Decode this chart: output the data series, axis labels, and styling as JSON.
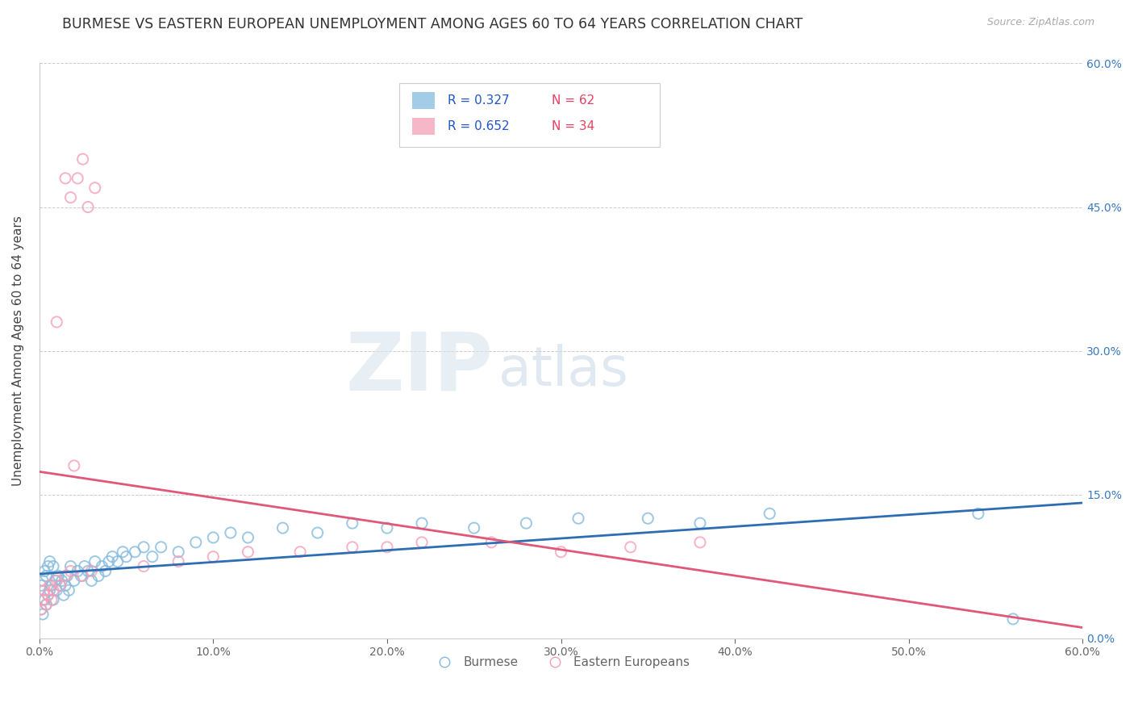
{
  "title": "BURMESE VS EASTERN EUROPEAN UNEMPLOYMENT AMONG AGES 60 TO 64 YEARS CORRELATION CHART",
  "source": "Source: ZipAtlas.com",
  "ylabel": "Unemployment Among Ages 60 to 64 years",
  "x_tick_labels": [
    "0.0%",
    "10.0%",
    "20.0%",
    "30.0%",
    "40.0%",
    "50.0%",
    "60.0%"
  ],
  "y_tick_labels": [
    "0.0%",
    "15.0%",
    "30.0%",
    "45.0%",
    "60.0%"
  ],
  "xlim": [
    0.0,
    0.6
  ],
  "ylim": [
    0.0,
    0.6
  ],
  "legend_labels": [
    "Burmese",
    "Eastern Europeans"
  ],
  "blue_R": "R = 0.327",
  "blue_N": "N = 62",
  "pink_R": "R = 0.652",
  "pink_N": "N = 34",
  "blue_color": "#85bbde",
  "pink_color": "#f4a0b8",
  "blue_line_color": "#2e6db4",
  "pink_line_color": "#e05878",
  "watermark_zip": "ZIP",
  "watermark_atlas": "atlas",
  "title_fontsize": 12.5,
  "axis_label_fontsize": 11,
  "tick_fontsize": 10,
  "blue_points_x": [
    0.001,
    0.001,
    0.002,
    0.002,
    0.003,
    0.003,
    0.004,
    0.004,
    0.005,
    0.005,
    0.006,
    0.006,
    0.007,
    0.008,
    0.008,
    0.009,
    0.01,
    0.011,
    0.012,
    0.013,
    0.014,
    0.015,
    0.016,
    0.017,
    0.018,
    0.02,
    0.022,
    0.024,
    0.026,
    0.028,
    0.03,
    0.032,
    0.034,
    0.036,
    0.038,
    0.04,
    0.042,
    0.045,
    0.048,
    0.05,
    0.055,
    0.06,
    0.065,
    0.07,
    0.08,
    0.09,
    0.1,
    0.11,
    0.12,
    0.14,
    0.16,
    0.18,
    0.2,
    0.22,
    0.25,
    0.28,
    0.31,
    0.35,
    0.38,
    0.42,
    0.54,
    0.56
  ],
  "blue_points_y": [
    0.03,
    0.055,
    0.025,
    0.06,
    0.04,
    0.07,
    0.035,
    0.065,
    0.045,
    0.075,
    0.05,
    0.08,
    0.055,
    0.04,
    0.075,
    0.06,
    0.05,
    0.065,
    0.055,
    0.06,
    0.045,
    0.055,
    0.065,
    0.05,
    0.075,
    0.06,
    0.07,
    0.065,
    0.075,
    0.07,
    0.06,
    0.08,
    0.065,
    0.075,
    0.07,
    0.08,
    0.085,
    0.08,
    0.09,
    0.085,
    0.09,
    0.095,
    0.085,
    0.095,
    0.09,
    0.1,
    0.105,
    0.11,
    0.105,
    0.115,
    0.11,
    0.12,
    0.115,
    0.12,
    0.115,
    0.12,
    0.125,
    0.125,
    0.12,
    0.13,
    0.13,
    0.02
  ],
  "pink_points_x": [
    0.001,
    0.002,
    0.003,
    0.004,
    0.005,
    0.006,
    0.007,
    0.008,
    0.01,
    0.012,
    0.015,
    0.018,
    0.02,
    0.025,
    0.03,
    0.018,
    0.022,
    0.025,
    0.028,
    0.032,
    0.06,
    0.08,
    0.1,
    0.12,
    0.15,
    0.18,
    0.2,
    0.22,
    0.26,
    0.3,
    0.34,
    0.38,
    0.01,
    0.015
  ],
  "pink_points_y": [
    0.03,
    0.04,
    0.05,
    0.035,
    0.045,
    0.055,
    0.04,
    0.05,
    0.06,
    0.055,
    0.065,
    0.07,
    0.18,
    0.065,
    0.07,
    0.46,
    0.48,
    0.5,
    0.45,
    0.47,
    0.075,
    0.08,
    0.085,
    0.09,
    0.09,
    0.095,
    0.095,
    0.1,
    0.1,
    0.09,
    0.095,
    0.1,
    0.33,
    0.48
  ]
}
